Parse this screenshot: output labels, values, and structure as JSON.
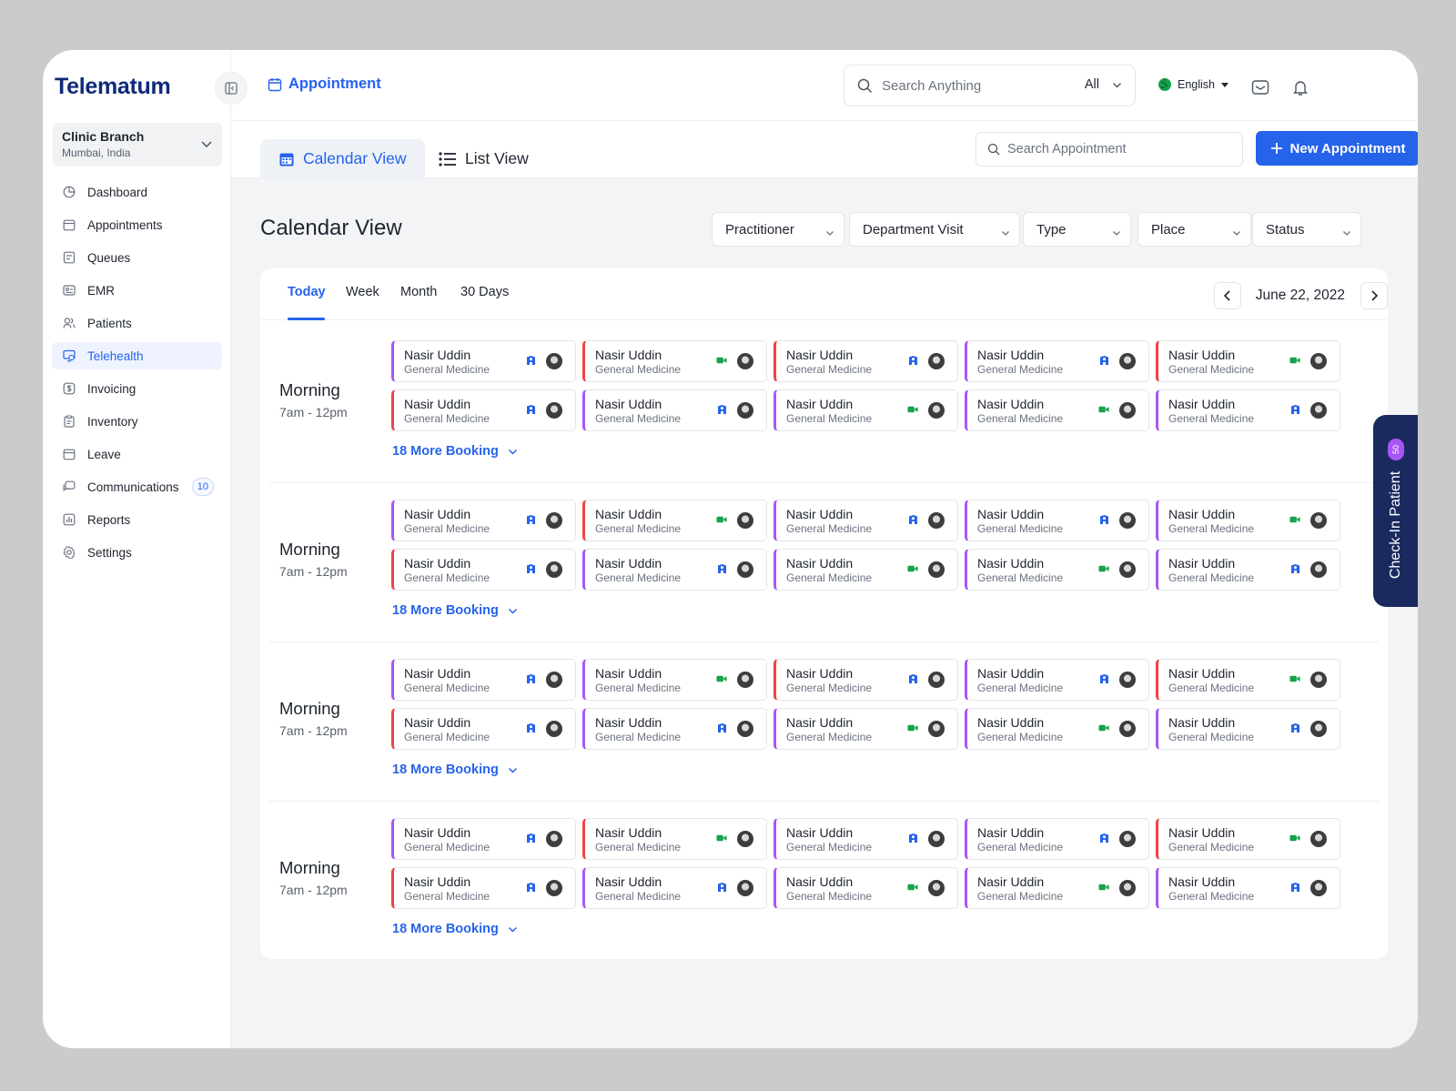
{
  "app": {
    "logo": "Telematum",
    "branch": {
      "name": "Clinic Branch",
      "location": "Mumbai, India"
    }
  },
  "sidebar": {
    "items": [
      {
        "label": "Dashboard",
        "icon": "dashboard-icon"
      },
      {
        "label": "Appointments",
        "icon": "calendar-icon"
      },
      {
        "label": "Queues",
        "icon": "queue-icon"
      },
      {
        "label": "EMR",
        "icon": "record-icon"
      },
      {
        "label": "Patients",
        "icon": "users-icon"
      },
      {
        "label": "Telehealth",
        "icon": "monitor-icon",
        "active": true
      },
      {
        "label": "Invoicing",
        "icon": "dollar-icon"
      },
      {
        "label": "Inventory",
        "icon": "clipboard-icon"
      },
      {
        "label": "Leave",
        "icon": "calendar-icon"
      },
      {
        "label": "Communications",
        "icon": "chat-icon",
        "badge": "10"
      },
      {
        "label": "Reports",
        "icon": "report-icon"
      },
      {
        "label": "Settings",
        "icon": "gear-icon"
      }
    ]
  },
  "topbar": {
    "breadcrumb": "Appointment",
    "search_placeholder": "Search Anything",
    "search_scope": "All",
    "language": "English"
  },
  "subbar": {
    "tabs": [
      "Calendar View",
      "List View"
    ],
    "search_placeholder": "Search Appointment",
    "new_button": "New Appointment"
  },
  "main": {
    "title": "Calendar View",
    "filters": [
      "Practitioner",
      "Department Visit",
      "Type",
      "Place",
      "Status"
    ],
    "range_tabs": [
      "Today",
      "Week",
      "Month",
      "30 Days"
    ],
    "active_range": "Today",
    "date": "June 22, 2022",
    "slots": [
      {
        "title": "Morning",
        "time": "7am - 12pm",
        "more": "18 More Booking",
        "cards": [
          {
            "name": "Nasir Uddin",
            "dept": "General Medicine",
            "color": "purple",
            "type": "clinic"
          },
          {
            "name": "Nasir Uddin",
            "dept": "General Medicine",
            "color": "red",
            "type": "video"
          },
          {
            "name": "Nasir Uddin",
            "dept": "General Medicine",
            "color": "red",
            "type": "clinic"
          },
          {
            "name": "Nasir Uddin",
            "dept": "General Medicine",
            "color": "purple",
            "type": "clinic"
          },
          {
            "name": "Nasir Uddin",
            "dept": "General Medicine",
            "color": "red",
            "type": "video"
          },
          {
            "name": "Nasir Uddin",
            "dept": "General Medicine",
            "color": "red",
            "type": "clinic"
          },
          {
            "name": "Nasir Uddin",
            "dept": "General Medicine",
            "color": "purple",
            "type": "clinic"
          },
          {
            "name": "Nasir Uddin",
            "dept": "General Medicine",
            "color": "purple",
            "type": "video"
          },
          {
            "name": "Nasir Uddin",
            "dept": "General Medicine",
            "color": "purple",
            "type": "video"
          },
          {
            "name": "Nasir Uddin",
            "dept": "General Medicine",
            "color": "purple",
            "type": "clinic"
          }
        ]
      },
      {
        "title": "Morning",
        "time": "7am - 12pm",
        "more": "18 More Booking",
        "cards": [
          {
            "name": "Nasir Uddin",
            "dept": "General Medicine",
            "color": "purple",
            "type": "clinic"
          },
          {
            "name": "Nasir Uddin",
            "dept": "General Medicine",
            "color": "red",
            "type": "video"
          },
          {
            "name": "Nasir Uddin",
            "dept": "General Medicine",
            "color": "purple",
            "type": "clinic"
          },
          {
            "name": "Nasir Uddin",
            "dept": "General Medicine",
            "color": "purple",
            "type": "clinic"
          },
          {
            "name": "Nasir Uddin",
            "dept": "General Medicine",
            "color": "purple",
            "type": "video"
          },
          {
            "name": "Nasir Uddin",
            "dept": "General Medicine",
            "color": "red",
            "type": "clinic"
          },
          {
            "name": "Nasir Uddin",
            "dept": "General Medicine",
            "color": "purple",
            "type": "clinic"
          },
          {
            "name": "Nasir Uddin",
            "dept": "General Medicine",
            "color": "purple",
            "type": "video"
          },
          {
            "name": "Nasir Uddin",
            "dept": "General Medicine",
            "color": "purple",
            "type": "video"
          },
          {
            "name": "Nasir Uddin",
            "dept": "General Medicine",
            "color": "purple",
            "type": "clinic"
          }
        ]
      },
      {
        "title": "Morning",
        "time": "7am - 12pm",
        "more": "18 More Booking",
        "cards": [
          {
            "name": "Nasir Uddin",
            "dept": "General Medicine",
            "color": "purple",
            "type": "clinic"
          },
          {
            "name": "Nasir Uddin",
            "dept": "General Medicine",
            "color": "purple",
            "type": "video"
          },
          {
            "name": "Nasir Uddin",
            "dept": "General Medicine",
            "color": "red",
            "type": "clinic"
          },
          {
            "name": "Nasir Uddin",
            "dept": "General Medicine",
            "color": "purple",
            "type": "clinic"
          },
          {
            "name": "Nasir Uddin",
            "dept": "General Medicine",
            "color": "red",
            "type": "video"
          },
          {
            "name": "Nasir Uddin",
            "dept": "General Medicine",
            "color": "red",
            "type": "clinic"
          },
          {
            "name": "Nasir Uddin",
            "dept": "General Medicine",
            "color": "purple",
            "type": "clinic"
          },
          {
            "name": "Nasir Uddin",
            "dept": "General Medicine",
            "color": "purple",
            "type": "video"
          },
          {
            "name": "Nasir Uddin",
            "dept": "General Medicine",
            "color": "purple",
            "type": "video"
          },
          {
            "name": "Nasir Uddin",
            "dept": "General Medicine",
            "color": "purple",
            "type": "clinic"
          }
        ]
      },
      {
        "title": "Morning",
        "time": "7am - 12pm",
        "more": "18 More Booking",
        "cards": [
          {
            "name": "Nasir Uddin",
            "dept": "General Medicine",
            "color": "purple",
            "type": "clinic"
          },
          {
            "name": "Nasir Uddin",
            "dept": "General Medicine",
            "color": "red",
            "type": "video"
          },
          {
            "name": "Nasir Uddin",
            "dept": "General Medicine",
            "color": "purple",
            "type": "clinic"
          },
          {
            "name": "Nasir Uddin",
            "dept": "General Medicine",
            "color": "purple",
            "type": "clinic"
          },
          {
            "name": "Nasir Uddin",
            "dept": "General Medicine",
            "color": "red",
            "type": "video"
          },
          {
            "name": "Nasir Uddin",
            "dept": "General Medicine",
            "color": "red",
            "type": "clinic"
          },
          {
            "name": "Nasir Uddin",
            "dept": "General Medicine",
            "color": "purple",
            "type": "clinic"
          },
          {
            "name": "Nasir Uddin",
            "dept": "General Medicine",
            "color": "purple",
            "type": "video"
          },
          {
            "name": "Nasir Uddin",
            "dept": "General Medicine",
            "color": "purple",
            "type": "video"
          },
          {
            "name": "Nasir Uddin",
            "dept": "General Medicine",
            "color": "purple",
            "type": "clinic"
          }
        ]
      }
    ]
  },
  "checkin": {
    "label": "Check-In Patient",
    "count": "50"
  },
  "colors": {
    "accent": "#2563eb",
    "purple": "#a855f7",
    "red": "#ef4444",
    "video": "#16a34a",
    "navy": "#1a2a5e"
  }
}
